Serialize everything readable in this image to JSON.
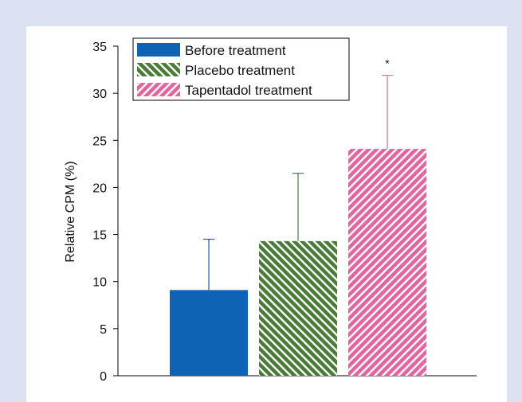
{
  "colors": {
    "background": "#dbe3f3",
    "panel": "#ffffff",
    "before": "#0f63b4",
    "placebo": "#4b7b38",
    "tapentadol": "#e1669f"
  },
  "chart_data": {
    "type": "bar",
    "ylabel": "Relative CPM (%)",
    "ylim": [
      0,
      35
    ],
    "yticks": [
      0,
      5,
      10,
      15,
      20,
      25,
      30,
      35
    ],
    "grid": false,
    "legend_position": "top-left",
    "series": [
      {
        "name": "Before treatment",
        "value": 9.1,
        "error": 5.4,
        "color": "#0f63b4",
        "pattern": "solid"
      },
      {
        "name": "Placebo treatment",
        "value": 14.3,
        "error": 7.2,
        "color": "#4b7b38",
        "pattern": "hatch-backslash"
      },
      {
        "name": "Tapentadol treatment",
        "value": 24.1,
        "error": 7.8,
        "color": "#e1669f",
        "pattern": "hatch-slash"
      }
    ],
    "annotations": [
      {
        "series": "Tapentadol treatment",
        "text": "*"
      }
    ]
  }
}
